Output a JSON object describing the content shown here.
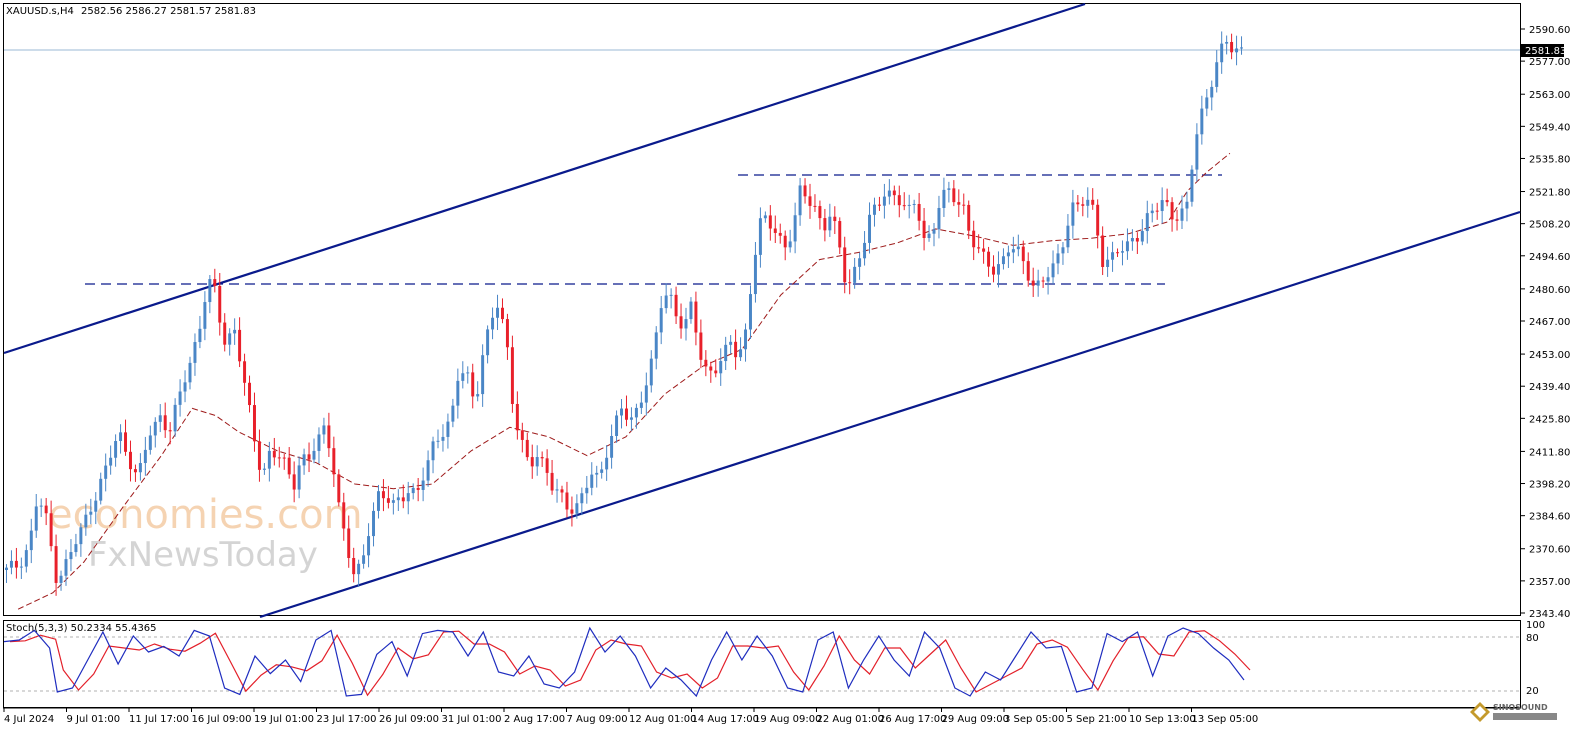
{
  "header": {
    "symbol": "XAUUSD.s,H4",
    "ohlc": "2582.56 2586.27 2581.57 2581.83"
  },
  "stoch": {
    "label": "Stoch(5,3,3) 50.2334 55.4365",
    "levels": [
      "100",
      "80",
      "20"
    ]
  },
  "watermark": {
    "line1": "economies.com",
    "line2": "FxNewsToday",
    "badge": "SINOSOUND"
  },
  "colors": {
    "bull": "#4a86c6",
    "bear": "#e8202a",
    "channel": "#0a1a8c",
    "ma": "#9e1a1a",
    "stoch_main": "#1f2dbf",
    "stoch_signal": "#e3202a"
  },
  "chart_data": {
    "type": "candlestick",
    "symbol": "XAUUSD.s",
    "timeframe": "H4",
    "last_price": "2581.83",
    "y_ticks": [
      "2590.60",
      "2577.00",
      "2563.00",
      "2549.40",
      "2535.80",
      "2521.80",
      "2508.20",
      "2494.60",
      "2480.60",
      "2467.00",
      "2453.00",
      "2439.40",
      "2425.80",
      "2411.80",
      "2398.20",
      "2384.60",
      "2370.60",
      "2357.00",
      "2343.40"
    ],
    "ylim": [
      2343.4,
      2600.0
    ],
    "x_labels": [
      "4 Jul 2024",
      "9 Jul 01:00",
      "11 Jul 17:00",
      "16 Jul 09:00",
      "19 Jul 01:00",
      "23 Jul 17:00",
      "26 Jul 09:00",
      "31 Jul 01:00",
      "2 Aug 17:00",
      "7 Aug 09:00",
      "12 Aug 01:00",
      "14 Aug 17:00",
      "19 Aug 09:00",
      "22 Aug 01:00",
      "26 Aug 17:00",
      "29 Aug 09:00",
      "3 Sep 05:00",
      "5 Sep 21:00",
      "10 Sep 13:00",
      "13 Sep 05:00"
    ],
    "num_bars": 250,
    "close_path": [
      [
        0,
        2361
      ],
      [
        3,
        2364
      ],
      [
        6,
        2373
      ],
      [
        8,
        2392
      ],
      [
        10,
        2385
      ],
      [
        13,
        2358
      ],
      [
        16,
        2366
      ],
      [
        19,
        2377
      ],
      [
        22,
        2390
      ],
      [
        26,
        2405
      ],
      [
        29,
        2420
      ],
      [
        31,
        2412
      ],
      [
        34,
        2400
      ],
      [
        37,
        2419
      ],
      [
        40,
        2428
      ],
      [
        42,
        2420
      ],
      [
        45,
        2436
      ],
      [
        48,
        2453
      ],
      [
        50,
        2466
      ],
      [
        52,
        2484
      ],
      [
        54,
        2478
      ],
      [
        56,
        2458
      ],
      [
        59,
        2464
      ],
      [
        62,
        2435
      ],
      [
        64,
        2416
      ],
      [
        66,
        2402
      ],
      [
        68,
        2412
      ],
      [
        71,
        2409
      ],
      [
        74,
        2396
      ],
      [
        76,
        2411
      ],
      [
        78,
        2408
      ],
      [
        80,
        2415
      ],
      [
        82,
        2420
      ],
      [
        84,
        2412
      ],
      [
        86,
        2388
      ],
      [
        88,
        2370
      ],
      [
        90,
        2357
      ],
      [
        92,
        2366
      ],
      [
        94,
        2384
      ],
      [
        96,
        2393
      ],
      [
        98,
        2391
      ],
      [
        100,
        2389
      ],
      [
        102,
        2393
      ],
      [
        104,
        2397
      ],
      [
        106,
        2392
      ],
      [
        108,
        2402
      ],
      [
        110,
        2414
      ],
      [
        112,
        2420
      ],
      [
        115,
        2425
      ],
      [
        117,
        2446
      ],
      [
        119,
        2445
      ],
      [
        121,
        2432
      ],
      [
        123,
        2453
      ],
      [
        125,
        2464
      ],
      [
        127,
        2475
      ],
      [
        129,
        2462
      ],
      [
        131,
        2429
      ],
      [
        133,
        2415
      ],
      [
        135,
        2404
      ],
      [
        137,
        2411
      ],
      [
        139,
        2407
      ],
      [
        141,
        2397
      ],
      [
        143,
        2392
      ],
      [
        145,
        2387
      ],
      [
        147,
        2389
      ],
      [
        149,
        2395
      ],
      [
        151,
        2402
      ],
      [
        153,
        2398
      ],
      [
        155,
        2412
      ],
      [
        157,
        2424
      ],
      [
        159,
        2431
      ],
      [
        161,
        2422
      ],
      [
        163,
        2429
      ],
      [
        165,
        2441
      ],
      [
        167,
        2453
      ],
      [
        169,
        2473
      ],
      [
        171,
        2478
      ],
      [
        173,
        2470
      ],
      [
        175,
        2466
      ],
      [
        177,
        2474
      ],
      [
        179,
        2452
      ],
      [
        181,
        2444
      ],
      [
        183,
        2448
      ],
      [
        185,
        2453
      ],
      [
        187,
        2457
      ],
      [
        189,
        2450
      ],
      [
        191,
        2463
      ],
      [
        193,
        2494
      ],
      [
        195,
        2511
      ],
      [
        197,
        2507
      ],
      [
        199,
        2504
      ],
      [
        201,
        2499
      ],
      [
        203,
        2506
      ],
      [
        205,
        2521
      ],
      [
        207,
        2518
      ],
      [
        209,
        2515
      ],
      [
        211,
        2507
      ],
      [
        213,
        2513
      ],
      [
        215,
        2498
      ],
      [
        217,
        2481
      ],
      [
        219,
        2489
      ],
      [
        221,
        2498
      ],
      [
        223,
        2510
      ],
      [
        225,
        2515
      ],
      [
        227,
        2523
      ],
      [
        229,
        2521
      ],
      [
        231,
        2517
      ],
      [
        233,
        2512
      ],
      [
        235,
        2518
      ],
      [
        237,
        2503
      ],
      [
        239,
        2503
      ],
      [
        241,
        2516
      ],
      [
        243,
        2522
      ],
      [
        245,
        2520
      ],
      [
        247,
        2517
      ],
      [
        249,
        2501
      ],
      [
        251,
        2496
      ],
      [
        253,
        2493
      ],
      [
        255,
        2490
      ],
      [
        257,
        2491
      ],
      [
        259,
        2497
      ],
      [
        261,
        2497
      ],
      [
        263,
        2492
      ],
      [
        265,
        2483
      ],
      [
        267,
        2481
      ],
      [
        269,
        2486
      ],
      [
        271,
        2492
      ],
      [
        273,
        2502
      ],
      [
        275,
        2515
      ],
      [
        277,
        2514
      ],
      [
        279,
        2519
      ],
      [
        281,
        2514
      ],
      [
        283,
        2493
      ],
      [
        285,
        2491
      ],
      [
        287,
        2496
      ],
      [
        289,
        2499
      ],
      [
        291,
        2503
      ],
      [
        293,
        2504
      ],
      [
        295,
        2510
      ],
      [
        297,
        2515
      ],
      [
        299,
        2520
      ],
      [
        301,
        2512
      ],
      [
        303,
        2510
      ],
      [
        305,
        2515
      ],
      [
        307,
        2545
      ],
      [
        309,
        2558
      ],
      [
        311,
        2566
      ],
      [
        313,
        2577
      ],
      [
        315,
        2586
      ],
      [
        317,
        2583
      ],
      [
        319,
        2582
      ]
    ],
    "ma_path": [
      [
        3,
        2345
      ],
      [
        12,
        2352
      ],
      [
        20,
        2365
      ],
      [
        30,
        2388
      ],
      [
        40,
        2410
      ],
      [
        48,
        2430
      ],
      [
        54,
        2427
      ],
      [
        60,
        2420
      ],
      [
        70,
        2412
      ],
      [
        80,
        2407
      ],
      [
        90,
        2398
      ],
      [
        100,
        2396
      ],
      [
        110,
        2398
      ],
      [
        120,
        2412
      ],
      [
        130,
        2422
      ],
      [
        140,
        2418
      ],
      [
        150,
        2410
      ],
      [
        160,
        2418
      ],
      [
        170,
        2436
      ],
      [
        180,
        2448
      ],
      [
        190,
        2455
      ],
      [
        200,
        2478
      ],
      [
        210,
        2493
      ],
      [
        220,
        2496
      ],
      [
        230,
        2500
      ],
      [
        240,
        2506
      ],
      [
        250,
        2503
      ],
      [
        260,
        2499
      ],
      [
        270,
        2501
      ],
      [
        280,
        2502
      ],
      [
        290,
        2504
      ],
      [
        300,
        2509
      ],
      [
        305,
        2522
      ],
      [
        310,
        2530
      ],
      [
        316,
        2538
      ]
    ],
    "stoch_k": [
      [
        0,
        78
      ],
      [
        4,
        80
      ],
      [
        8,
        92
      ],
      [
        12,
        70
      ],
      [
        14,
        15
      ],
      [
        18,
        20
      ],
      [
        22,
        55
      ],
      [
        26,
        90
      ],
      [
        30,
        50
      ],
      [
        34,
        85
      ],
      [
        38,
        65
      ],
      [
        42,
        72
      ],
      [
        46,
        60
      ],
      [
        50,
        92
      ],
      [
        54,
        85
      ],
      [
        58,
        20
      ],
      [
        62,
        12
      ],
      [
        66,
        60
      ],
      [
        70,
        38
      ],
      [
        74,
        55
      ],
      [
        78,
        28
      ],
      [
        82,
        80
      ],
      [
        86,
        92
      ],
      [
        90,
        10
      ],
      [
        94,
        12
      ],
      [
        98,
        62
      ],
      [
        102,
        78
      ],
      [
        106,
        35
      ],
      [
        110,
        88
      ],
      [
        114,
        92
      ],
      [
        118,
        90
      ],
      [
        122,
        60
      ],
      [
        126,
        90
      ],
      [
        130,
        40
      ],
      [
        134,
        35
      ],
      [
        138,
        60
      ],
      [
        142,
        25
      ],
      [
        146,
        20
      ],
      [
        150,
        40
      ],
      [
        154,
        95
      ],
      [
        158,
        65
      ],
      [
        162,
        85
      ],
      [
        166,
        60
      ],
      [
        170,
        20
      ],
      [
        174,
        45
      ],
      [
        178,
        30
      ],
      [
        182,
        10
      ],
      [
        186,
        55
      ],
      [
        190,
        90
      ],
      [
        194,
        55
      ],
      [
        198,
        85
      ],
      [
        202,
        60
      ],
      [
        206,
        20
      ],
      [
        210,
        15
      ],
      [
        214,
        80
      ],
      [
        218,
        90
      ],
      [
        222,
        20
      ],
      [
        226,
        55
      ],
      [
        230,
        85
      ],
      [
        234,
        55
      ],
      [
        238,
        35
      ],
      [
        242,
        90
      ],
      [
        246,
        70
      ],
      [
        250,
        20
      ],
      [
        254,
        10
      ],
      [
        258,
        40
      ],
      [
        262,
        30
      ],
      [
        266,
        60
      ],
      [
        270,
        90
      ],
      [
        274,
        70
      ],
      [
        278,
        72
      ],
      [
        282,
        15
      ],
      [
        286,
        20
      ],
      [
        290,
        88
      ],
      [
        294,
        78
      ],
      [
        298,
        90
      ],
      [
        302,
        35
      ],
      [
        306,
        85
      ],
      [
        310,
        95
      ],
      [
        314,
        88
      ],
      [
        318,
        70
      ],
      [
        322,
        55
      ],
      [
        326,
        30
      ]
    ]
  }
}
